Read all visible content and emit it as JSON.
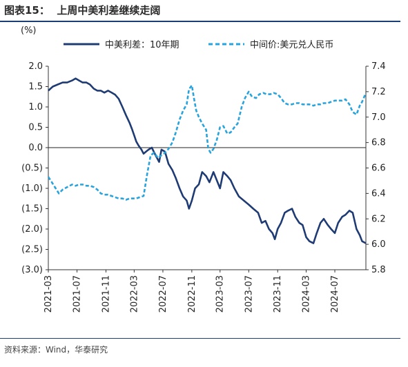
{
  "figure": {
    "title": "图表15：  上周中美利差继续走阔",
    "source": "资料来源：Wind，华泰研究"
  },
  "chart_data": {
    "type": "line",
    "unit_label": "(%)",
    "x_ticks": [
      "2021-03",
      "2021-07",
      "2021-11",
      "2022-03",
      "2022-07",
      "2022-11",
      "2023-03",
      "2023-07",
      "2023-11",
      "2024-03",
      "2024-07"
    ],
    "x_range": [
      "2021-03-01",
      "2024-11-10"
    ],
    "y_left": {
      "lim": [
        -3.0,
        2.0
      ],
      "ticks": [
        "2.0",
        "1.5",
        "1.0",
        "0.5",
        "0.0",
        "(0.5)",
        "(1.0)",
        "(1.5)",
        "(2.0)",
        "(2.5)",
        "(3.0)"
      ]
    },
    "y_right": {
      "lim": [
        5.8,
        7.4
      ],
      "ticks": [
        "7.4",
        "7.2",
        "7.0",
        "6.8",
        "6.6",
        "6.4",
        "6.2",
        "6.0",
        "5.8"
      ]
    },
    "legend_placement": "top",
    "colors": {
      "spread": "#1f3b73",
      "fx": "#29a3dc"
    },
    "series": [
      {
        "name": "中美利差：10年期",
        "axis": "left",
        "style": "solid",
        "points": [
          [
            "2021-03-01",
            1.4
          ],
          [
            "2021-03-20",
            1.5
          ],
          [
            "2021-04-10",
            1.55
          ],
          [
            "2021-05-01",
            1.6
          ],
          [
            "2021-05-20",
            1.6
          ],
          [
            "2021-06-10",
            1.65
          ],
          [
            "2021-06-25",
            1.7
          ],
          [
            "2021-07-10",
            1.65
          ],
          [
            "2021-07-25",
            1.6
          ],
          [
            "2021-08-10",
            1.6
          ],
          [
            "2021-08-25",
            1.55
          ],
          [
            "2021-09-10",
            1.45
          ],
          [
            "2021-09-25",
            1.4
          ],
          [
            "2021-10-10",
            1.4
          ],
          [
            "2021-10-25",
            1.35
          ],
          [
            "2021-11-10",
            1.4
          ],
          [
            "2021-11-25",
            1.35
          ],
          [
            "2021-12-10",
            1.3
          ],
          [
            "2021-12-25",
            1.2
          ],
          [
            "2022-01-10",
            1.0
          ],
          [
            "2022-01-25",
            0.8
          ],
          [
            "2022-02-10",
            0.6
          ],
          [
            "2022-02-20",
            0.45
          ],
          [
            "2022-03-01",
            0.3
          ],
          [
            "2022-03-10",
            0.15
          ],
          [
            "2022-03-20",
            0.05
          ],
          [
            "2022-04-01",
            -0.05
          ],
          [
            "2022-04-10",
            -0.15
          ],
          [
            "2022-04-20",
            -0.1
          ],
          [
            "2022-05-01",
            -0.05
          ],
          [
            "2022-05-15",
            0.0
          ],
          [
            "2022-06-01",
            -0.2
          ],
          [
            "2022-06-15",
            -0.35
          ],
          [
            "2022-06-25",
            -0.05
          ],
          [
            "2022-07-10",
            -0.1
          ],
          [
            "2022-07-25",
            -0.4
          ],
          [
            "2022-08-10",
            -0.55
          ],
          [
            "2022-08-25",
            -0.75
          ],
          [
            "2022-09-10",
            -1.0
          ],
          [
            "2022-09-25",
            -1.2
          ],
          [
            "2022-10-10",
            -1.3
          ],
          [
            "2022-10-20",
            -1.5
          ],
          [
            "2022-11-01",
            -1.3
          ],
          [
            "2022-11-15",
            -1.0
          ],
          [
            "2022-12-01",
            -0.9
          ],
          [
            "2022-12-15",
            -0.6
          ],
          [
            "2023-01-01",
            -0.7
          ],
          [
            "2023-01-15",
            -0.85
          ],
          [
            "2023-02-01",
            -0.6
          ],
          [
            "2023-02-15",
            -0.8
          ],
          [
            "2023-03-01",
            -1.0
          ],
          [
            "2023-03-15",
            -0.6
          ],
          [
            "2023-04-01",
            -0.7
          ],
          [
            "2023-04-15",
            -0.8
          ],
          [
            "2023-05-01",
            -1.0
          ],
          [
            "2023-05-20",
            -1.2
          ],
          [
            "2023-06-10",
            -1.3
          ],
          [
            "2023-07-01",
            -1.4
          ],
          [
            "2023-07-20",
            -1.5
          ],
          [
            "2023-08-10",
            -1.6
          ],
          [
            "2023-08-25",
            -1.85
          ],
          [
            "2023-09-10",
            -1.8
          ],
          [
            "2023-09-25",
            -2.0
          ],
          [
            "2023-10-10",
            -2.1
          ],
          [
            "2023-10-20",
            -2.25
          ],
          [
            "2023-11-01",
            -2.0
          ],
          [
            "2023-11-15",
            -1.85
          ],
          [
            "2023-12-01",
            -1.6
          ],
          [
            "2023-12-15",
            -1.55
          ],
          [
            "2024-01-01",
            -1.5
          ],
          [
            "2024-01-15",
            -1.7
          ],
          [
            "2024-02-01",
            -1.85
          ],
          [
            "2024-02-15",
            -1.9
          ],
          [
            "2024-03-01",
            -2.2
          ],
          [
            "2024-03-15",
            -2.3
          ],
          [
            "2024-04-01",
            -2.35
          ],
          [
            "2024-04-15",
            -2.1
          ],
          [
            "2024-05-01",
            -1.85
          ],
          [
            "2024-05-15",
            -1.75
          ],
          [
            "2024-06-01",
            -1.9
          ],
          [
            "2024-06-15",
            -2.0
          ],
          [
            "2024-07-01",
            -2.1
          ],
          [
            "2024-07-15",
            -1.85
          ],
          [
            "2024-08-01",
            -1.7
          ],
          [
            "2024-08-15",
            -1.65
          ],
          [
            "2024-09-01",
            -1.55
          ],
          [
            "2024-09-15",
            -1.6
          ],
          [
            "2024-10-01",
            -2.0
          ],
          [
            "2024-10-15",
            -2.15
          ],
          [
            "2024-10-25",
            -2.3
          ],
          [
            "2024-11-10",
            -2.35
          ]
        ]
      },
      {
        "name": "中间价:美元兑人民币",
        "axis": "right",
        "style": "dashed",
        "points": [
          [
            "2021-03-01",
            6.53
          ],
          [
            "2021-03-15",
            6.49
          ],
          [
            "2021-04-01",
            6.44
          ],
          [
            "2021-04-15",
            6.4
          ],
          [
            "2021-05-01",
            6.43
          ],
          [
            "2021-05-20",
            6.45
          ],
          [
            "2021-06-10",
            6.47
          ],
          [
            "2021-06-25",
            6.46
          ],
          [
            "2021-07-10",
            6.47
          ],
          [
            "2021-07-25",
            6.47
          ],
          [
            "2021-08-10",
            6.46
          ],
          [
            "2021-08-25",
            6.46
          ],
          [
            "2021-09-10",
            6.45
          ],
          [
            "2021-09-25",
            6.43
          ],
          [
            "2021-10-10",
            6.4
          ],
          [
            "2021-10-25",
            6.39
          ],
          [
            "2021-11-10",
            6.39
          ],
          [
            "2021-11-25",
            6.38
          ],
          [
            "2021-12-10",
            6.37
          ],
          [
            "2021-12-25",
            6.36
          ],
          [
            "2022-01-10",
            6.36
          ],
          [
            "2022-01-25",
            6.35
          ],
          [
            "2022-02-10",
            6.36
          ],
          [
            "2022-02-25",
            6.36
          ],
          [
            "2022-03-10",
            6.36
          ],
          [
            "2022-03-25",
            6.37
          ],
          [
            "2022-04-10",
            6.38
          ],
          [
            "2022-04-25",
            6.55
          ],
          [
            "2022-05-10",
            6.7
          ],
          [
            "2022-05-25",
            6.72
          ],
          [
            "2022-06-10",
            6.68
          ],
          [
            "2022-06-25",
            6.7
          ],
          [
            "2022-07-10",
            6.72
          ],
          [
            "2022-07-25",
            6.75
          ],
          [
            "2022-08-10",
            6.8
          ],
          [
            "2022-08-25",
            6.88
          ],
          [
            "2022-09-10",
            6.98
          ],
          [
            "2022-09-25",
            7.05
          ],
          [
            "2022-10-10",
            7.1
          ],
          [
            "2022-10-20",
            7.22
          ],
          [
            "2022-11-01",
            7.25
          ],
          [
            "2022-11-10",
            7.15
          ],
          [
            "2022-11-20",
            7.05
          ],
          [
            "2022-12-01",
            7.0
          ],
          [
            "2022-12-15",
            6.95
          ],
          [
            "2023-01-01",
            6.9
          ],
          [
            "2023-01-10",
            6.75
          ],
          [
            "2023-01-20",
            6.72
          ],
          [
            "2023-02-01",
            6.75
          ],
          [
            "2023-02-15",
            6.82
          ],
          [
            "2023-03-01",
            6.92
          ],
          [
            "2023-03-15",
            6.93
          ],
          [
            "2023-04-01",
            6.87
          ],
          [
            "2023-04-15",
            6.88
          ],
          [
            "2023-05-01",
            6.92
          ],
          [
            "2023-05-15",
            6.95
          ],
          [
            "2023-06-01",
            7.08
          ],
          [
            "2023-06-15",
            7.15
          ],
          [
            "2023-07-01",
            7.2
          ],
          [
            "2023-07-15",
            7.16
          ],
          [
            "2023-08-01",
            7.15
          ],
          [
            "2023-08-15",
            7.18
          ],
          [
            "2023-09-01",
            7.19
          ],
          [
            "2023-09-15",
            7.18
          ],
          [
            "2023-10-01",
            7.18
          ],
          [
            "2023-10-15",
            7.19
          ],
          [
            "2023-11-01",
            7.18
          ],
          [
            "2023-11-15",
            7.15
          ],
          [
            "2023-12-01",
            7.11
          ],
          [
            "2023-12-15",
            7.1
          ],
          [
            "2024-01-01",
            7.1
          ],
          [
            "2024-01-15",
            7.11
          ],
          [
            "2024-02-01",
            7.11
          ],
          [
            "2024-02-15",
            7.1
          ],
          [
            "2024-03-01",
            7.1
          ],
          [
            "2024-03-15",
            7.1
          ],
          [
            "2024-04-01",
            7.09
          ],
          [
            "2024-04-15",
            7.1
          ],
          [
            "2024-05-01",
            7.1
          ],
          [
            "2024-05-15",
            7.11
          ],
          [
            "2024-06-01",
            7.11
          ],
          [
            "2024-06-15",
            7.12
          ],
          [
            "2024-07-01",
            7.13
          ],
          [
            "2024-07-15",
            7.13
          ],
          [
            "2024-08-01",
            7.13
          ],
          [
            "2024-08-15",
            7.14
          ],
          [
            "2024-09-01",
            7.1
          ],
          [
            "2024-09-15",
            7.04
          ],
          [
            "2024-10-01",
            7.02
          ],
          [
            "2024-10-15",
            7.09
          ],
          [
            "2024-10-25",
            7.12
          ],
          [
            "2024-11-10",
            7.19
          ]
        ]
      }
    ]
  }
}
